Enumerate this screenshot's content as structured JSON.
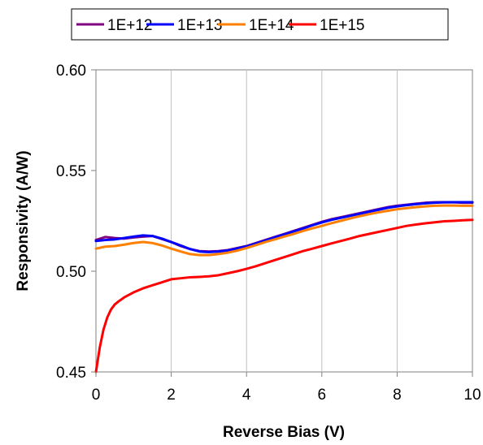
{
  "chart_data": {
    "type": "line",
    "title": "",
    "xlabel": "Reverse Bias (V)",
    "ylabel": "Responsivity (A/W)",
    "xlim": [
      0,
      10
    ],
    "ylim": [
      0.45,
      0.6
    ],
    "xticks": [
      0,
      2,
      4,
      6,
      8,
      10
    ],
    "xtick_labels": [
      "0",
      "2",
      "4",
      "6",
      "8",
      "10"
    ],
    "yticks": [
      0.45,
      0.5,
      0.55,
      0.6
    ],
    "ytick_labels": [
      "0.45",
      "0.50",
      "0.55",
      "0.60"
    ],
    "grid": "vertical",
    "legend_position": "top",
    "series": [
      {
        "name": "1E+12",
        "color": "#800080",
        "x": [
          0,
          0.25,
          0.5,
          0.75,
          1.0,
          1.25,
          1.5,
          1.75,
          2.0,
          2.25,
          2.5,
          2.75,
          3.0,
          3.25,
          3.5,
          3.75,
          4.0,
          4.25,
          4.5,
          4.75,
          5.0,
          5.25,
          5.5,
          5.75,
          6.0,
          6.25,
          6.5,
          6.75,
          7.0,
          7.25,
          7.5,
          7.75,
          8.0,
          8.25,
          8.5,
          8.75,
          9.0,
          9.25,
          9.5,
          9.75,
          10.0
        ],
        "y": [
          0.5155,
          0.517,
          0.5165,
          0.5162,
          0.5168,
          0.5172,
          0.5175,
          0.516,
          0.5145,
          0.5125,
          0.511,
          0.51,
          0.5098,
          0.51,
          0.5105,
          0.5115,
          0.5125,
          0.514,
          0.5155,
          0.517,
          0.5185,
          0.52,
          0.5215,
          0.523,
          0.5245,
          0.5258,
          0.5268,
          0.5278,
          0.5288,
          0.5298,
          0.5308,
          0.5318,
          0.5325,
          0.533,
          0.5335,
          0.534,
          0.5342,
          0.5343,
          0.5342,
          0.534,
          0.534
        ]
      },
      {
        "name": "1E+13",
        "color": "#0000ff",
        "x": [
          0,
          0.25,
          0.5,
          0.75,
          1.0,
          1.25,
          1.5,
          1.75,
          2.0,
          2.25,
          2.5,
          2.75,
          3.0,
          3.25,
          3.5,
          3.75,
          4.0,
          4.25,
          4.5,
          4.75,
          5.0,
          5.25,
          5.5,
          5.75,
          6.0,
          6.25,
          6.5,
          6.75,
          7.0,
          7.25,
          7.5,
          7.75,
          8.0,
          8.25,
          8.5,
          8.75,
          9.0,
          9.25,
          9.5,
          9.75,
          10.0
        ],
        "y": [
          0.515,
          0.5155,
          0.5158,
          0.5165,
          0.5172,
          0.5178,
          0.5175,
          0.5162,
          0.5145,
          0.5128,
          0.511,
          0.5098,
          0.5095,
          0.5098,
          0.5103,
          0.5113,
          0.5123,
          0.5138,
          0.5152,
          0.5168,
          0.5182,
          0.5198,
          0.5212,
          0.5228,
          0.5242,
          0.5255,
          0.5265,
          0.5275,
          0.5285,
          0.5295,
          0.5305,
          0.5315,
          0.5322,
          0.5328,
          0.5333,
          0.5337,
          0.534,
          0.5342,
          0.5343,
          0.5343,
          0.5343
        ]
      },
      {
        "name": "1E+14",
        "color": "#ff8000",
        "x": [
          0,
          0.25,
          0.5,
          0.75,
          1.0,
          1.25,
          1.5,
          1.75,
          2.0,
          2.25,
          2.5,
          2.75,
          3.0,
          3.25,
          3.5,
          3.75,
          4.0,
          4.25,
          4.5,
          4.75,
          5.0,
          5.25,
          5.5,
          5.75,
          6.0,
          6.25,
          6.5,
          6.75,
          7.0,
          7.25,
          7.5,
          7.75,
          8.0,
          8.25,
          8.5,
          8.75,
          9.0,
          9.25,
          9.5,
          9.75,
          10.0
        ],
        "y": [
          0.5112,
          0.5122,
          0.5125,
          0.5132,
          0.514,
          0.5145,
          0.514,
          0.5128,
          0.5112,
          0.5098,
          0.5085,
          0.508,
          0.508,
          0.5085,
          0.5092,
          0.5102,
          0.5115,
          0.513,
          0.5145,
          0.5158,
          0.5172,
          0.5185,
          0.52,
          0.5213,
          0.5225,
          0.5238,
          0.525,
          0.5262,
          0.5273,
          0.5283,
          0.5292,
          0.53,
          0.5308,
          0.5313,
          0.5318,
          0.5322,
          0.5325,
          0.5326,
          0.5326,
          0.5325,
          0.5325
        ]
      },
      {
        "name": "1E+15",
        "color": "#ff0000",
        "x": [
          0,
          0.1,
          0.2,
          0.3,
          0.4,
          0.5,
          0.6,
          0.75,
          1.0,
          1.25,
          1.5,
          1.75,
          2.0,
          2.25,
          2.5,
          2.75,
          3.0,
          3.25,
          3.5,
          3.75,
          4.0,
          4.25,
          4.5,
          4.75,
          5.0,
          5.25,
          5.5,
          5.75,
          6.0,
          6.25,
          6.5,
          6.75,
          7.0,
          7.25,
          7.5,
          7.75,
          8.0,
          8.25,
          8.5,
          8.75,
          9.0,
          9.25,
          9.5,
          9.75,
          10.0
        ],
        "y": [
          0.45,
          0.462,
          0.471,
          0.477,
          0.481,
          0.4835,
          0.485,
          0.487,
          0.4895,
          0.4915,
          0.493,
          0.4945,
          0.496,
          0.4965,
          0.497,
          0.4972,
          0.4975,
          0.498,
          0.499,
          0.5,
          0.5012,
          0.5025,
          0.504,
          0.5055,
          0.507,
          0.5085,
          0.51,
          0.5112,
          0.5125,
          0.5138,
          0.515,
          0.5162,
          0.5175,
          0.5185,
          0.5195,
          0.5205,
          0.5215,
          0.5225,
          0.5232,
          0.5238,
          0.5243,
          0.5248,
          0.525,
          0.5253,
          0.5255
        ]
      }
    ]
  }
}
